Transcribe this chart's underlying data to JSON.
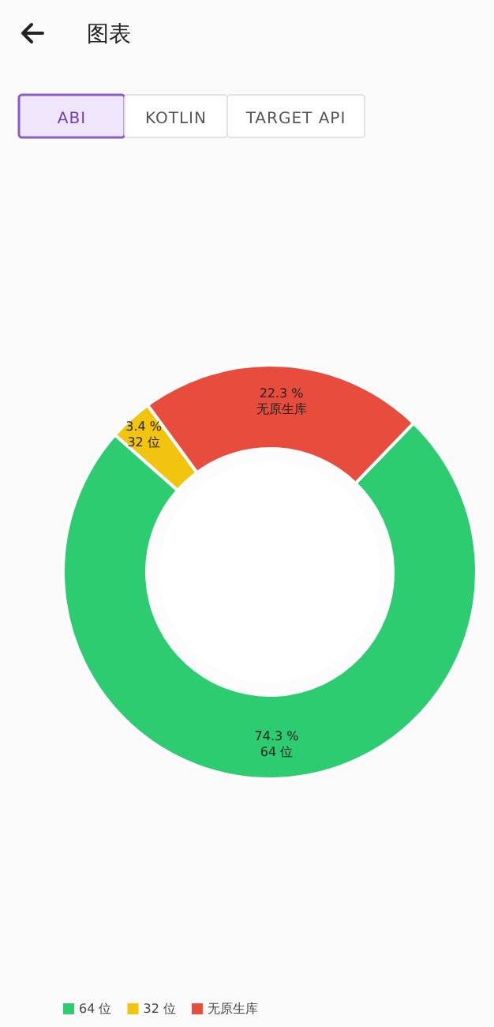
{
  "chart_data": {
    "type": "donut",
    "title": "图表",
    "annotations": [
      "ABI",
      "KOTLIN",
      "TARGET API"
    ],
    "categories": [
      "64 位",
      "32 位",
      "无原生库"
    ],
    "values": [
      74.3,
      3.4,
      22.3
    ],
    "value_labels": [
      "74.3 %",
      "3.4 %",
      "22.3 %"
    ],
    "colors": [
      "#2ecc71",
      "#f1c40f",
      "#e74c3c"
    ],
    "legend": "bottom left"
  }
}
